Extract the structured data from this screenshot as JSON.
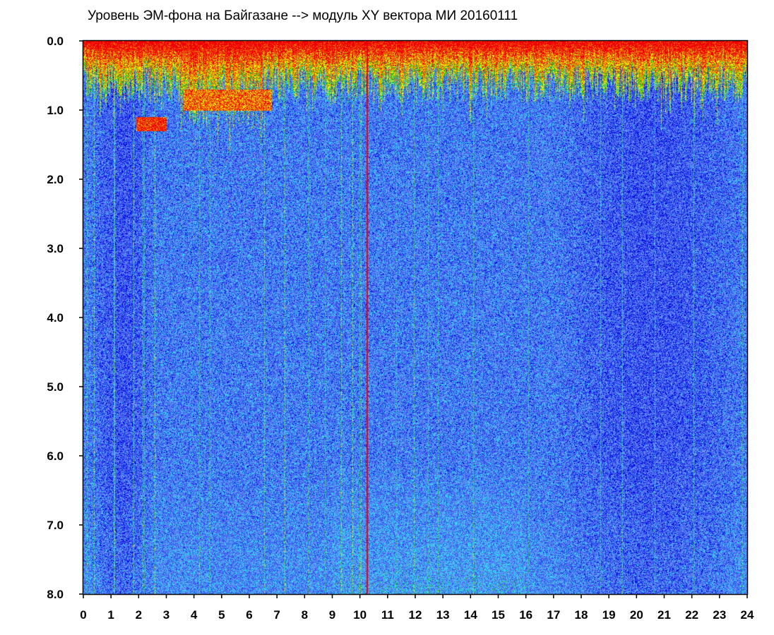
{
  "chart_data": {
    "type": "heatmap",
    "title": "Уровень ЭМ-фона на Байгазане  -->  модуль XY вектора МИ  20160111",
    "xlabel": "",
    "ylabel": "",
    "xlim": [
      0,
      24
    ],
    "ylim": [
      0,
      8
    ],
    "y_inverted": true,
    "x_ticks": [
      "0",
      "1",
      "2",
      "3",
      "4",
      "5",
      "6",
      "7",
      "8",
      "9",
      "10",
      "11",
      "12",
      "13",
      "14",
      "15",
      "16",
      "17",
      "18",
      "19",
      "20",
      "21",
      "22",
      "23",
      "24"
    ],
    "y_ticks": [
      "0.0",
      "1.0",
      "2.0",
      "3.0",
      "4.0",
      "5.0",
      "6.0",
      "7.0",
      "8.0"
    ],
    "grid": false,
    "colorscale": [
      "#0000e0",
      "#3050f0",
      "#6a8af5",
      "#30d8f0",
      "#20b020",
      "#f0f000",
      "#f07000",
      "#f00000"
    ],
    "features": {
      "high_level_top_band_y": [
        0.0,
        1.0
      ],
      "disturbed_interval_x": [
        3.5,
        6.5
      ],
      "disturbed_extent_y": [
        0.0,
        3.0
      ],
      "hotspot_1": {
        "x": [
          1.9,
          3.0
        ],
        "y": [
          1.1,
          1.3
        ]
      },
      "hotspot_2": {
        "x": [
          3.6,
          6.8
        ],
        "y": [
          0.7,
          1.0
        ]
      },
      "vertical_interference_line_x": 10.25,
      "low_level_regions_x": [
        [
          0.2,
          2.6
        ],
        [
          17.0,
          24.0
        ]
      ]
    }
  }
}
